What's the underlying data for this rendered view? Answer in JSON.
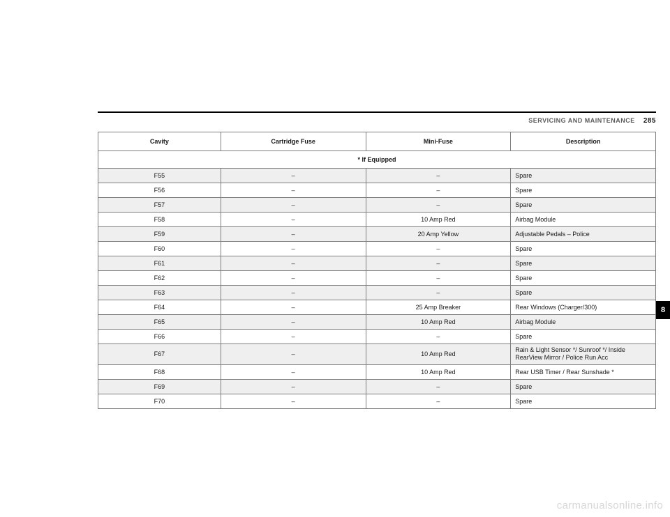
{
  "header": {
    "section_title": "SERVICING AND MAINTENANCE",
    "page_number": "285"
  },
  "side_tab": "8",
  "watermark": "carmanualsonline.info",
  "table": {
    "columns": [
      "Cavity",
      "Cartridge Fuse",
      "Mini-Fuse",
      "Description"
    ],
    "subheader": "* If Equipped",
    "rows": [
      {
        "cavity": "F55",
        "cartridge": "–",
        "mini": "–",
        "desc": "Spare"
      },
      {
        "cavity": "F56",
        "cartridge": "–",
        "mini": "–",
        "desc": "Spare"
      },
      {
        "cavity": "F57",
        "cartridge": "–",
        "mini": "–",
        "desc": "Spare"
      },
      {
        "cavity": "F58",
        "cartridge": "–",
        "mini": "10 Amp Red",
        "desc": "Airbag Module"
      },
      {
        "cavity": "F59",
        "cartridge": "–",
        "mini": "20 Amp Yellow",
        "desc": "Adjustable Pedals – Police"
      },
      {
        "cavity": "F60",
        "cartridge": "–",
        "mini": "–",
        "desc": "Spare"
      },
      {
        "cavity": "F61",
        "cartridge": "–",
        "mini": "–",
        "desc": "Spare"
      },
      {
        "cavity": "F62",
        "cartridge": "–",
        "mini": "–",
        "desc": "Spare"
      },
      {
        "cavity": "F63",
        "cartridge": "–",
        "mini": "–",
        "desc": "Spare"
      },
      {
        "cavity": "F64",
        "cartridge": "–",
        "mini": "25 Amp Breaker",
        "desc": "Rear Windows (Charger/300)"
      },
      {
        "cavity": "F65",
        "cartridge": "–",
        "mini": "10 Amp Red",
        "desc": "Airbag Module"
      },
      {
        "cavity": "F66",
        "cartridge": "–",
        "mini": "–",
        "desc": "Spare"
      },
      {
        "cavity": "F67",
        "cartridge": "–",
        "mini": "10 Amp Red",
        "desc": "Rain & Light Sensor */ Sunroof */ Inside RearView Mirror / Police Run Acc",
        "multi": true
      },
      {
        "cavity": "F68",
        "cartridge": "–",
        "mini": "10 Amp Red",
        "desc": "Rear USB Timer / Rear Sunshade *"
      },
      {
        "cavity": "F69",
        "cartridge": "–",
        "mini": "–",
        "desc": "Spare"
      },
      {
        "cavity": "F70",
        "cartridge": "–",
        "mini": "–",
        "desc": "Spare"
      }
    ]
  }
}
